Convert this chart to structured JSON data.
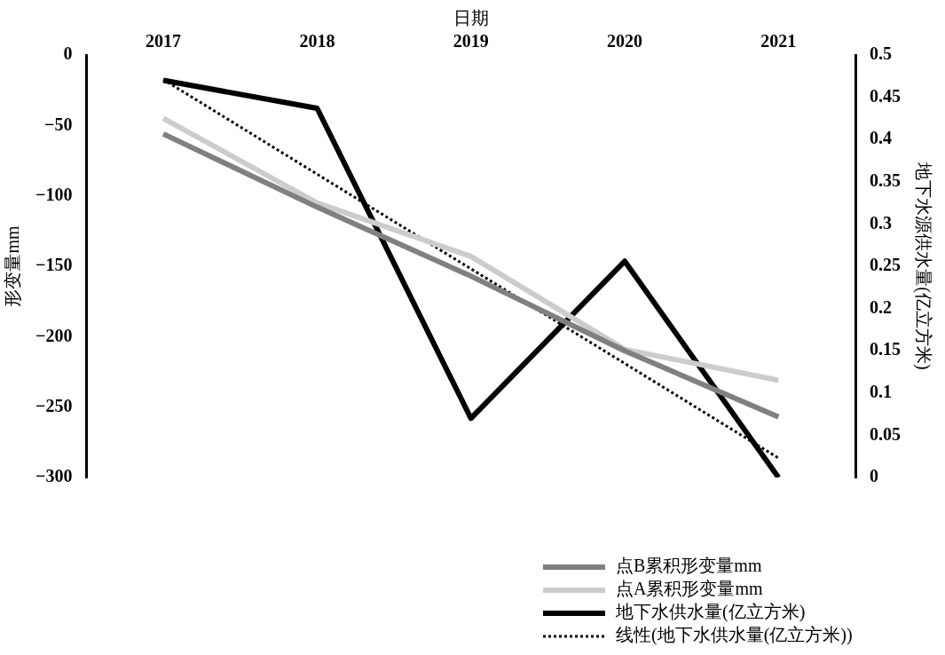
{
  "chart_data": {
    "type": "line",
    "xlabel": "日期",
    "ylabel": "形变量mm",
    "y2label": "地下水源供水量(亿立方米)",
    "categories": [
      "2017",
      "2018",
      "2019",
      "2020",
      "2021"
    ],
    "series": [
      {
        "name": "点B累积形变量mm",
        "color": "#808080",
        "values": [
          -56,
          -108,
          -157,
          -210,
          -257
        ]
      },
      {
        "name": "点A累积形变量mm",
        "color": "#cccccc",
        "values": [
          -45,
          -105,
          -143,
          -209,
          -231
        ]
      },
      {
        "name": "地下水供水量(亿立方米)",
        "color": "#000000",
        "axis": "y2",
        "values": [
          0.47,
          0.437,
          0.07,
          0.256,
          0
        ]
      },
      {
        "name": "线性(地下水供水量(亿立方米))",
        "color": "#000000",
        "axis": "y2",
        "line_style": "dotted",
        "values": [
          0.471,
          0.359,
          0.247,
          0.135,
          0.023
        ]
      }
    ],
    "ylim": [
      -300,
      0
    ],
    "yticks": [
      0,
      {
        "value": -50,
        "label": "−50"
      },
      {
        "value": -100,
        "label": "−100"
      },
      {
        "value": -150,
        "label": "−150"
      },
      {
        "value": -200,
        "label": "−200"
      },
      {
        "value": -250,
        "label": "−250"
      },
      {
        "value": -300,
        "label": "−300"
      }
    ],
    "y2lim": [
      0,
      0.5
    ],
    "y2ticks": [
      0,
      0.05,
      0.1,
      0.15,
      0.2,
      0.25,
      0.3,
      0.35,
      0.4,
      0.45,
      0.5
    ],
    "grid": false,
    "legend": "bottom right",
    "marker": "none",
    "line_style": "solid"
  }
}
